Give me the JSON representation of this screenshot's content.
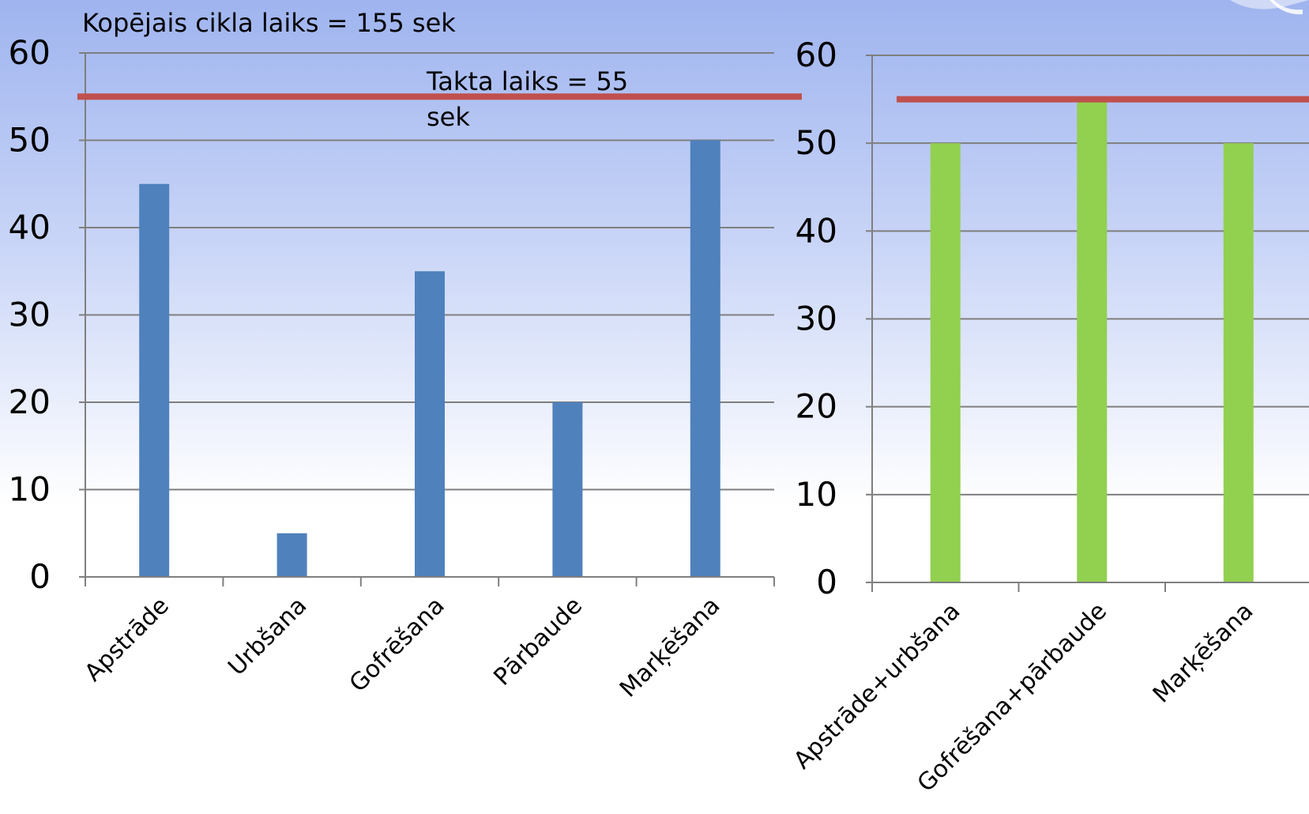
{
  "annotations": {
    "total_cycle": "Kopējais cikla laiks = 155 sek",
    "takt_line1": "Takta laiks = 55",
    "takt_line2": "sek"
  },
  "colors": {
    "left_bars": "#4f81bd",
    "right_bars": "#92d050",
    "takt_line": "#c0504d",
    "grid": "#7f7f7f"
  },
  "chart_data": [
    {
      "type": "bar",
      "categories": [
        "Apstrāde",
        "Urbšana",
        "Gofrēšana",
        "Pārbaude",
        "Marķēšana"
      ],
      "values": [
        45,
        5,
        35,
        20,
        50
      ],
      "ylim": [
        0,
        60
      ],
      "yticks": [
        "0",
        "10",
        "20",
        "30",
        "40",
        "50",
        "60"
      ],
      "takt_time": 55,
      "grid": true
    },
    {
      "type": "bar",
      "categories": [
        "Apstrāde+urbšana",
        "Gofrēšana+pārbaude",
        "Marķēšana"
      ],
      "values": [
        50,
        55,
        50
      ],
      "ylim": [
        0,
        60
      ],
      "yticks": [
        "0",
        "10",
        "20",
        "30",
        "40",
        "50",
        "60"
      ],
      "takt_time": 55,
      "grid": true
    }
  ]
}
